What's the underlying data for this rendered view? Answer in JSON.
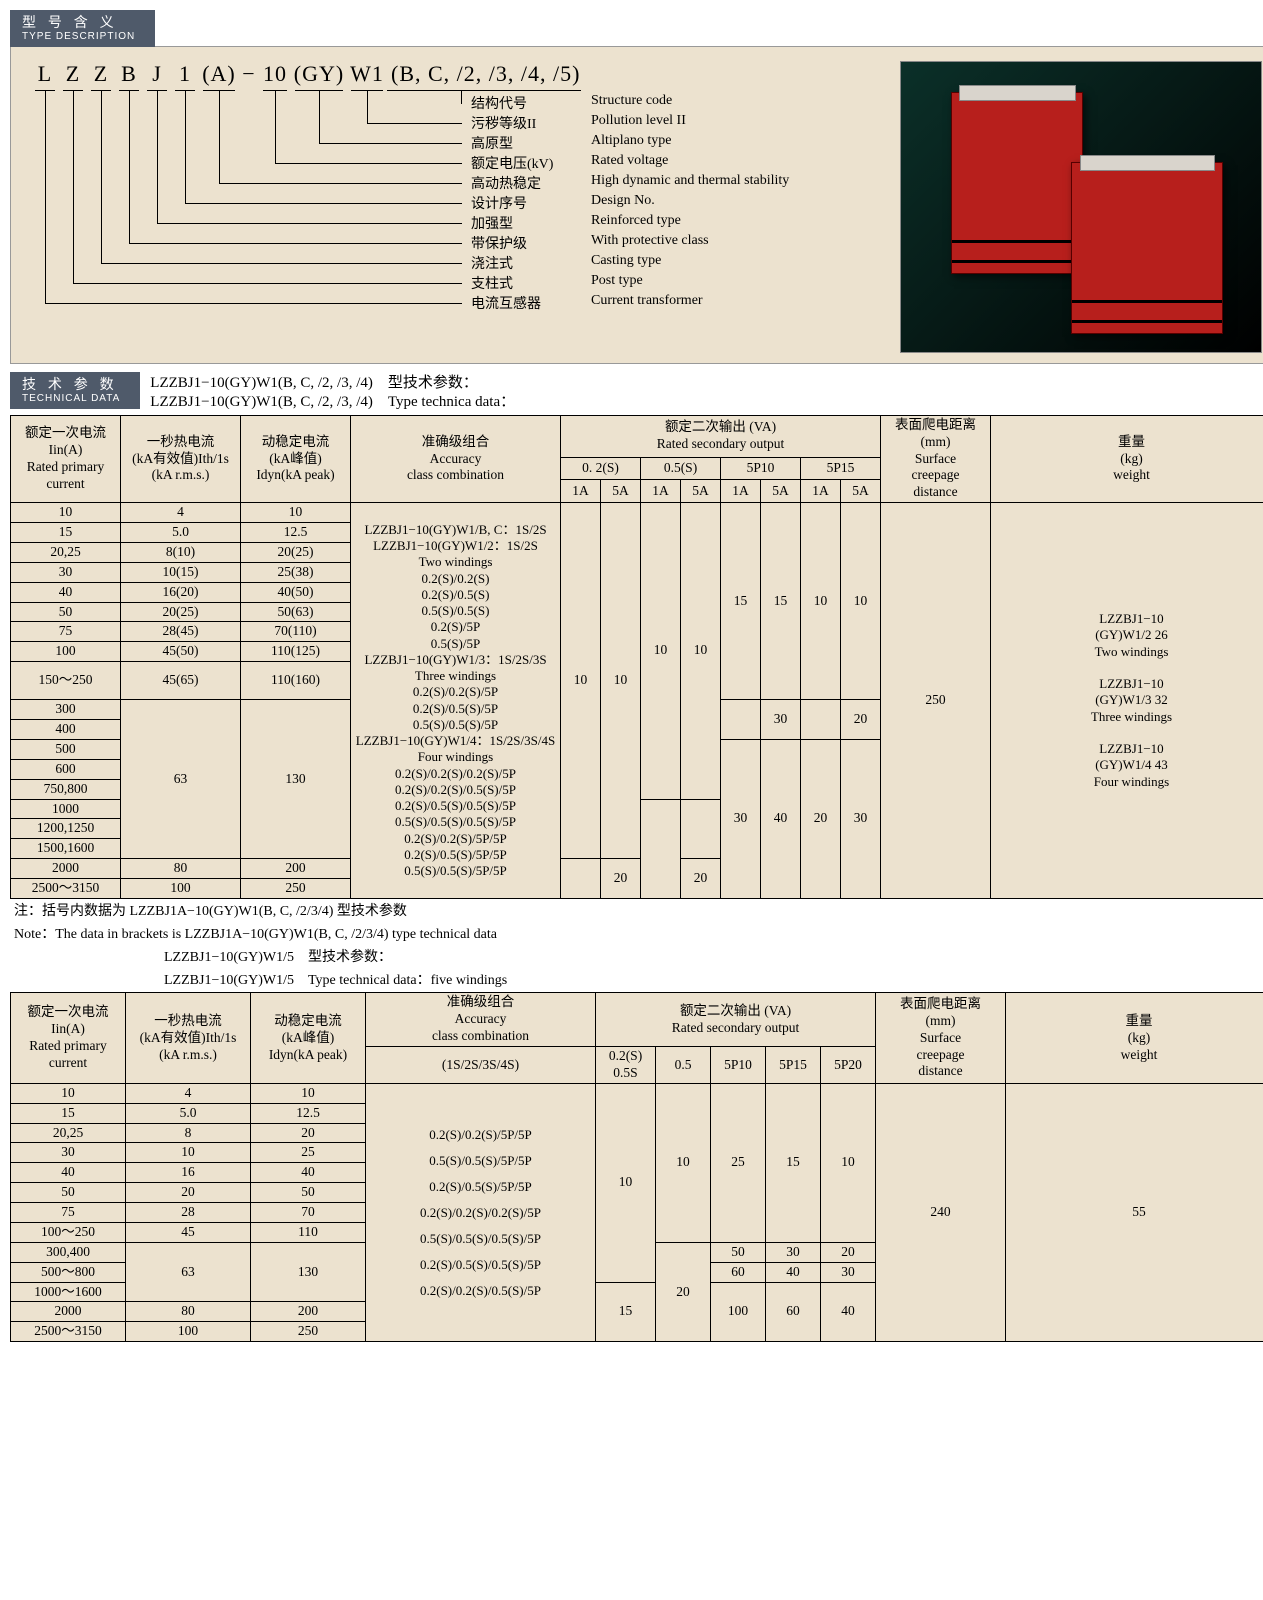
{
  "headers": {
    "type_cn": "型 号 含 义",
    "type_en": "TYPE DESCRIPTION",
    "tech_cn": "技 术 参 数",
    "tech_en": "TECHNICAL DATA"
  },
  "type_chars": [
    "L",
    "Z",
    "Z",
    "B",
    "J",
    "1",
    "(A)",
    "−",
    "10",
    "(GY)",
    "W1",
    "(B, C, /2, /3, /4, /5)"
  ],
  "leaders": [
    {
      "cn": "结构代号",
      "en": "Structure code"
    },
    {
      "cn": "污秽等级II",
      "en": "Pollution level II"
    },
    {
      "cn": "高原型",
      "en": "Altiplano type"
    },
    {
      "cn": "额定电压(kV)",
      "en": "Rated voltage"
    },
    {
      "cn": "高动热稳定",
      "en": "High dynamic and thermal stability"
    },
    {
      "cn": "设计序号",
      "en": "Design No."
    },
    {
      "cn": "加强型",
      "en": "Reinforced type"
    },
    {
      "cn": "带保护级",
      "en": "With protective class"
    },
    {
      "cn": "浇注式",
      "en": "Casting type"
    },
    {
      "cn": "支柱式",
      "en": "Post type"
    },
    {
      "cn": "电流互感器",
      "en": "Current transformer"
    }
  ],
  "tech_title": {
    "l1": "LZZBJ1−10(GY)W1(B, C, /2, /3, /4)　型技术参数：",
    "l2": "LZZBJ1−10(GY)W1(B, C, /2, /3, /4)　Type technica data："
  },
  "t1": {
    "head": {
      "c1a": "额定一次电流",
      "c1b": "Iin(A)",
      "c1c": "Rated primary",
      "c1d": "current",
      "c2a": "一秒热电流",
      "c2b": "(kA有效值)Ith/1s",
      "c2c": "(kA r.m.s.)",
      "c3a": "动稳定电流",
      "c3b": "(kA峰值)",
      "c3c": "Idyn(kA peak)",
      "c4a": "准确级组合",
      "c4b": "Accuracy",
      "c4c": "class combination",
      "c5a": "额定二次输出 (VA)",
      "c5b": "Rated secondary output",
      "s1": "0. 2(S)",
      "s2": "0.5(S)",
      "s3": "5P10",
      "s4": "5P15",
      "a1": "1A",
      "a5": "5A",
      "c6a": "表面爬电距离",
      "c6b": "(mm)",
      "c6c": "Surface",
      "c6d": "creepage",
      "c6e": "distance",
      "c7a": "重量",
      "c7b": "(kg)",
      "c7c": "weight"
    },
    "rows": [
      {
        "c": "10",
        "ith": "4",
        "idyn": "10"
      },
      {
        "c": "15",
        "ith": "5.0",
        "idyn": "12.5"
      },
      {
        "c": "20,25",
        "ith": "8(10)",
        "idyn": "20(25)"
      },
      {
        "c": "30",
        "ith": "10(15)",
        "idyn": "25(38)"
      },
      {
        "c": "40",
        "ith": "16(20)",
        "idyn": "40(50)"
      },
      {
        "c": "50",
        "ith": "20(25)",
        "idyn": "50(63)"
      },
      {
        "c": "75",
        "ith": "28(45)",
        "idyn": "70(110)"
      },
      {
        "c": "100",
        "ith": "45(50)",
        "idyn": "110(125)"
      },
      {
        "c": "150～250",
        "ith": "45(65)",
        "idyn": "110(160)"
      },
      {
        "c": "300"
      },
      {
        "c": "400"
      },
      {
        "c": "500"
      },
      {
        "c": "600"
      },
      {
        "c": "750,800"
      },
      {
        "c": "1000"
      },
      {
        "c": "1200,1250"
      },
      {
        "c": "1500,1600"
      },
      {
        "c": "2000",
        "ith": "80",
        "idyn": "200"
      },
      {
        "c": "2500～3150",
        "ith": "100",
        "idyn": "250"
      }
    ],
    "ith_g2": "63",
    "idyn_g2": "130",
    "acc_lines": [
      "LZZBJ1−10(GY)W1/B, C：1S/2S",
      "LZZBJ1−10(GY)W1/2：1S/2S",
      "Two windings",
      "0.2(S)/0.2(S)",
      "0.2(S)/0.5(S)",
      "0.5(S)/0.5(S)",
      "0.2(S)/5P",
      "0.5(S)/5P",
      "LZZBJ1−10(GY)W1/3：1S/2S/3S",
      "Three windings",
      "0.2(S)/0.2(S)/5P",
      "0.2(S)/0.5(S)/5P",
      "0.5(S)/0.5(S)/5P",
      "LZZBJ1−10(GY)W1/4：1S/2S/3S/4S",
      "Four windings",
      "0.2(S)/0.2(S)/0.2(S)/5P",
      "0.2(S)/0.2(S)/0.5(S)/5P",
      "0.2(S)/0.5(S)/0.5(S)/5P",
      "0.5(S)/0.5(S)/0.5(S)/5P",
      "0.2(S)/0.2(S)/5P/5P",
      "0.2(S)/0.5(S)/5P/5P",
      "0.5(S)/0.5(S)/5P/5P"
    ],
    "out": {
      "p02_1": "10",
      "p02_5_top": "10",
      "p02_5_bot": "20",
      "p05_1": "10",
      "p05_5_top": "10",
      "p05_5_bot": "20",
      "p10_1_top": "15",
      "p10_5_top": "15",
      "p10_1_m": "30",
      "p10_1_bot": "30",
      "p10_5_bot": "40",
      "p15_1_top": "10",
      "p15_5_top": "10",
      "p15_5_m": "20",
      "p15_1_bot": "20",
      "p15_5_bot": "30"
    },
    "creep": "250",
    "weight_lines": [
      "LZZBJ1−10",
      "(GY)W1/2 26",
      "Two windings",
      "",
      "LZZBJ1−10",
      "(GY)W1/3 32",
      "Three windings",
      "",
      "LZZBJ1−10",
      "(GY)W1/4 43",
      "Four windings"
    ]
  },
  "note1": "注：括号内数据为 LZZBJ1A−10(GY)W1(B, C, /2/3/4) 型技术参数",
  "note2": "Note：The data in brackets is LZZBJ1A−10(GY)W1(B, C, /2/3/4) type technical data",
  "note3": "LZZBJ1−10(GY)W1/5　型技术参数：",
  "note4": "LZZBJ1−10(GY)W1/5　Type technical data：five windings",
  "t2": {
    "head": {
      "c1a": "额定一次电流",
      "c1b": "Iin(A)",
      "c1c": "Rated primary",
      "c1d": "current",
      "c2a": "一秒热电流",
      "c2b": "(kA有效值)Ith/1s",
      "c2c": "(kA r.m.s.)",
      "c3a": "动稳定电流",
      "c3b": "(kA峰值)",
      "c3c": "Idyn(kA peak)",
      "c4a": "准确级组合",
      "c4b": "Accuracy",
      "c4c": "class combination",
      "c4d": "(1S/2S/3S/4S)",
      "c5a": "额定二次输出 (VA)",
      "c5b": "Rated secondary output",
      "s1a": "0.2(S)",
      "s1b": "0.5S",
      "s2": "0.5",
      "s3": "5P10",
      "s4": "5P15",
      "s5": "5P20",
      "c6a": "表面爬电距离",
      "c6b": "(mm)",
      "c6c": "Surface",
      "c6d": "creepage",
      "c6e": "distance",
      "c7a": "重量",
      "c7b": "(kg)",
      "c7c": "weight"
    },
    "rows": [
      {
        "c": "10",
        "ith": "4",
        "idyn": "10"
      },
      {
        "c": "15",
        "ith": "5.0",
        "idyn": "12.5"
      },
      {
        "c": "20,25",
        "ith": "8",
        "idyn": "20"
      },
      {
        "c": "30",
        "ith": "10",
        "idyn": "25"
      },
      {
        "c": "40",
        "ith": "16",
        "idyn": "40"
      },
      {
        "c": "50",
        "ith": "20",
        "idyn": "50"
      },
      {
        "c": "75",
        "ith": "28",
        "idyn": "70"
      },
      {
        "c": "100～250",
        "ith": "45",
        "idyn": "110"
      },
      {
        "c": "300,400"
      },
      {
        "c": "500～800"
      },
      {
        "c": "1000～1600"
      },
      {
        "c": "2000",
        "ith": "80",
        "idyn": "200"
      },
      {
        "c": "2500～3150",
        "ith": "100",
        "idyn": "250"
      }
    ],
    "ith_g": "63",
    "idyn_g": "130",
    "acc_lines": [
      "0.2(S)/0.2(S)/5P/5P",
      "0.5(S)/0.5(S)/5P/5P",
      "0.2(S)/0.5(S)/5P/5P",
      "0.2(S)/0.2(S)/0.2(S)/5P",
      "0.5(S)/0.5(S)/0.5(S)/5P",
      "0.2(S)/0.5(S)/0.5(S)/5P",
      "0.2(S)/0.2(S)/0.5(S)/5P"
    ],
    "out": {
      "p02_top": "10",
      "p02_bot": "15",
      "p05_top": "10",
      "p05_bot": "20",
      "p10_a": "25",
      "p10_b": "50",
      "p10_c": "60",
      "p10_d": "100",
      "p15_a": "15",
      "p15_b": "30",
      "p15_c": "40",
      "p15_d": "60",
      "p20_a": "10",
      "p20_b": "20",
      "p20_c": "30",
      "p20_d": "40"
    },
    "creep": "240",
    "weight": "55"
  }
}
